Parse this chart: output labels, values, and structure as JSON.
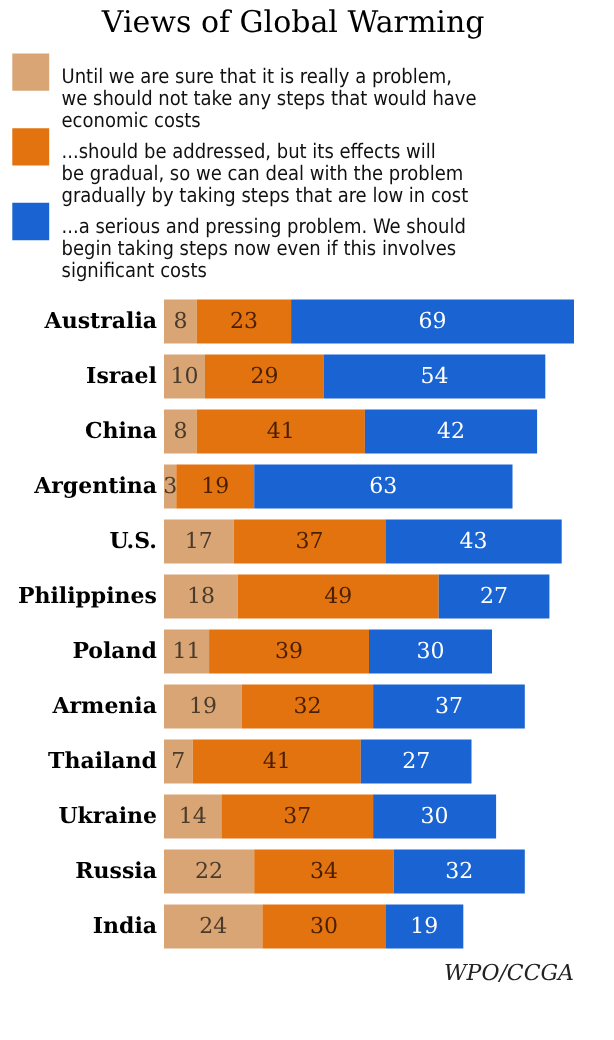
{
  "chart_data": {
    "type": "bar",
    "orientation": "horizontal",
    "stacked": true,
    "data_labels": true,
    "legend": "top",
    "title": "Views of Global Warming",
    "categories": [
      "Australia",
      "Israel",
      "China",
      "Argentina",
      "U.S.",
      "Philippines",
      "Poland",
      "Armenia",
      "Thailand",
      "Ukraine",
      "Russia",
      "India"
    ],
    "series": [
      {
        "name": "Until we are sure that it is really a problem, we should not take any steps that would have economic costs",
        "color": "#d9a574",
        "values": [
          8,
          10,
          8,
          3,
          17,
          18,
          11,
          19,
          7,
          14,
          22,
          24
        ]
      },
      {
        "name": "...should be addressed, but its effects will be gradual, so we can deal with the problem gradually by taking steps that are low in cost",
        "color": "#e2730f",
        "values": [
          23,
          29,
          41,
          19,
          37,
          49,
          39,
          32,
          41,
          37,
          34,
          30
        ]
      },
      {
        "name": "...a serious and pressing problem. We should begin taking steps now even if this involves significant costs",
        "color": "#1a63d2",
        "values": [
          69,
          54,
          42,
          63,
          43,
          27,
          30,
          37,
          27,
          30,
          32,
          19
        ]
      }
    ],
    "annotations": [
      "WPO/CCGA"
    ]
  }
}
